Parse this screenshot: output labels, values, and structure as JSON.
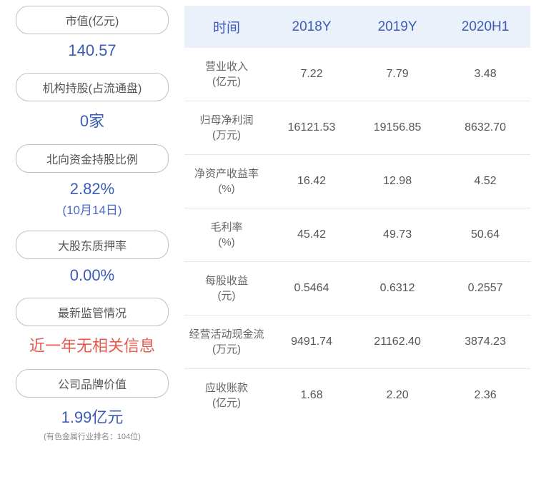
{
  "left_metrics": [
    {
      "label": "市值(亿元)",
      "value": "140.57",
      "color": "blue"
    },
    {
      "label": "机构持股(占流通盘)",
      "value": "0家",
      "color": "blue"
    },
    {
      "label": "北向资金持股比例",
      "value": "2.82%",
      "subvalue": "(10月14日)",
      "color": "blue"
    },
    {
      "label": "大股东质押率",
      "value": "0.00%",
      "color": "blue"
    },
    {
      "label": "最新监管情况",
      "value": "近一年无相关信息",
      "color": "red"
    },
    {
      "label": "公司品牌价值",
      "value": "1.99亿元",
      "footnote": "(有色金属行业排名：104位)",
      "color": "blue"
    }
  ],
  "table": {
    "headers": [
      "时间",
      "2018Y",
      "2019Y",
      "2020H1"
    ],
    "rows": [
      {
        "label": "营业收入\n(亿元)",
        "values": [
          "7.22",
          "7.79",
          "3.48"
        ]
      },
      {
        "label": "归母净利润\n(万元)",
        "values": [
          "16121.53",
          "19156.85",
          "8632.70"
        ]
      },
      {
        "label": "净资产收益率\n(%)",
        "values": [
          "16.42",
          "12.98",
          "4.52"
        ]
      },
      {
        "label": "毛利率\n(%)",
        "values": [
          "45.42",
          "49.73",
          "50.64"
        ]
      },
      {
        "label": "每股收益\n(元)",
        "values": [
          "0.5464",
          "0.6312",
          "0.2557"
        ]
      },
      {
        "label": "经营活动现金流\n(万元)",
        "values": [
          "9491.74",
          "21162.40",
          "3874.23"
        ]
      },
      {
        "label": "应收账款\n(亿元)",
        "values": [
          "1.68",
          "2.20",
          "2.36"
        ]
      }
    ]
  },
  "styling": {
    "header_bg": "#eaf1fa",
    "header_text_color": "#3b5cb8",
    "value_blue": "#3b5cb8",
    "value_red": "#e85a4f",
    "border_color": "#c0c0c0",
    "body_text_color": "#555555",
    "row_border": "#e8e8e8"
  }
}
